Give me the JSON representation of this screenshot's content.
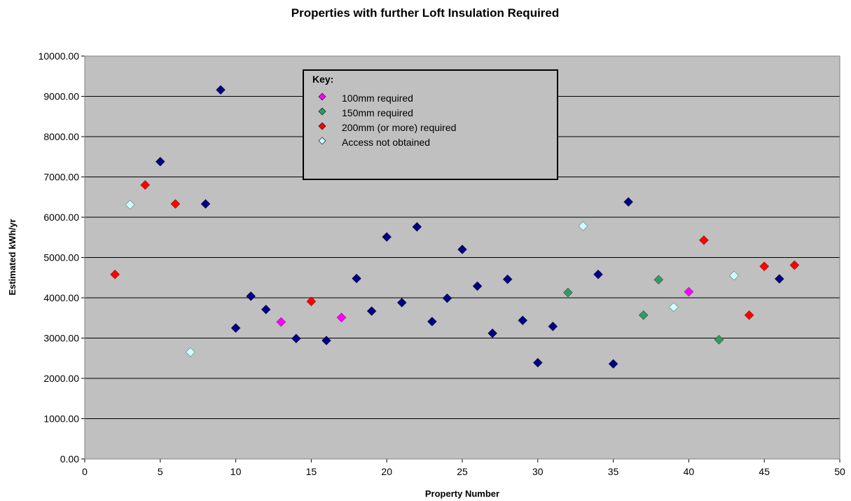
{
  "chart_data": {
    "type": "scatter",
    "title": "Properties with further Loft Insulation Required",
    "xlabel": "Property Number",
    "ylabel": "Estimated kWh/yr",
    "xlim": [
      0,
      50
    ],
    "ylim": [
      0,
      10000
    ],
    "x_ticks": [
      "0",
      "5",
      "10",
      "15",
      "20",
      "25",
      "30",
      "35",
      "40",
      "45",
      "50"
    ],
    "y_ticks": [
      "0.00",
      "1000.00",
      "2000.00",
      "3000.00",
      "4000.00",
      "5000.00",
      "6000.00",
      "7000.00",
      "8000.00",
      "9000.00",
      "10000.00"
    ],
    "grid": "horizontal",
    "plot_background": "#C0C0C0",
    "legend": {
      "title": "Key:",
      "placement": "top-center",
      "entries": [
        {
          "label": "100mm required",
          "series": "s100"
        },
        {
          "label": "150mm required",
          "series": "s150"
        },
        {
          "label": "200mm (or more) required",
          "series": "s200"
        },
        {
          "label": "Access not obtained",
          "series": "access"
        }
      ]
    },
    "series": [
      {
        "id": "unlisted",
        "color": "#000080",
        "points": [
          {
            "x": 5,
            "y": 7380
          },
          {
            "x": 8,
            "y": 6330
          },
          {
            "x": 9,
            "y": 9160
          },
          {
            "x": 10,
            "y": 3250
          },
          {
            "x": 11,
            "y": 4040
          },
          {
            "x": 12,
            "y": 3710
          },
          {
            "x": 14,
            "y": 2990
          },
          {
            "x": 16,
            "y": 2940
          },
          {
            "x": 18,
            "y": 4480
          },
          {
            "x": 19,
            "y": 3670
          },
          {
            "x": 20,
            "y": 5510
          },
          {
            "x": 21,
            "y": 3880
          },
          {
            "x": 22,
            "y": 5760
          },
          {
            "x": 23,
            "y": 3410
          },
          {
            "x": 24,
            "y": 3990
          },
          {
            "x": 25,
            "y": 5200
          },
          {
            "x": 26,
            "y": 4290
          },
          {
            "x": 27,
            "y": 3120
          },
          {
            "x": 28,
            "y": 4460
          },
          {
            "x": 29,
            "y": 3440
          },
          {
            "x": 30,
            "y": 2390
          },
          {
            "x": 31,
            "y": 3290
          },
          {
            "x": 34,
            "y": 4580
          },
          {
            "x": 35,
            "y": 2360
          },
          {
            "x": 36,
            "y": 6380
          },
          {
            "x": 46,
            "y": 4470
          }
        ]
      },
      {
        "id": "s100",
        "name": "100mm required",
        "color": "#FF00FF",
        "points": [
          {
            "x": 13,
            "y": 3400
          },
          {
            "x": 17,
            "y": 3510
          },
          {
            "x": 40,
            "y": 4150
          }
        ]
      },
      {
        "id": "s150",
        "name": "150mm required",
        "color": "#339966",
        "points": [
          {
            "x": 32,
            "y": 4130
          },
          {
            "x": 37,
            "y": 3570
          },
          {
            "x": 38,
            "y": 4450
          },
          {
            "x": 42,
            "y": 2960
          }
        ]
      },
      {
        "id": "s200",
        "name": "200mm (or more) required",
        "color": "#FF0000",
        "points": [
          {
            "x": 2,
            "y": 4580
          },
          {
            "x": 4,
            "y": 6800
          },
          {
            "x": 6,
            "y": 6330
          },
          {
            "x": 15,
            "y": 3910
          },
          {
            "x": 41,
            "y": 5430
          },
          {
            "x": 44,
            "y": 3570
          },
          {
            "x": 45,
            "y": 4780
          },
          {
            "x": 47,
            "y": 4810
          }
        ]
      },
      {
        "id": "access",
        "name": "Access not obtained",
        "color": "#CCFFFF",
        "points": [
          {
            "x": 3,
            "y": 6310
          },
          {
            "x": 7,
            "y": 2650
          },
          {
            "x": 33,
            "y": 5780
          },
          {
            "x": 39,
            "y": 3770
          },
          {
            "x": 43,
            "y": 4550
          }
        ]
      }
    ]
  }
}
